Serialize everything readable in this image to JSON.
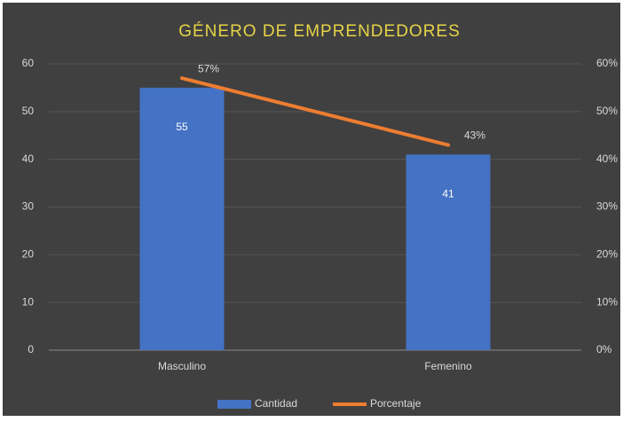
{
  "chart_data": {
    "type": "bar",
    "title": "GÉNERO DE EMPRENDEDORES",
    "categories": [
      "Masculino",
      "Femenino"
    ],
    "series": [
      {
        "name": "Cantidad",
        "type": "bar",
        "color": "#4472c4",
        "values": [
          55,
          41
        ]
      },
      {
        "name": "Porcentaje",
        "type": "line",
        "axis": "y2",
        "color": "#ed7d31",
        "values": [
          57,
          43
        ],
        "value_labels": [
          "57%",
          "43%"
        ]
      }
    ],
    "ylim": [
      0,
      60
    ],
    "yticks": [
      0,
      10,
      20,
      30,
      40,
      50,
      60
    ],
    "y2lim": [
      0,
      0.6
    ],
    "y2ticks": [
      {
        "value": 0,
        "label": "0%"
      },
      {
        "value": 0.1,
        "label": "10%"
      },
      {
        "value": 0.2,
        "label": "20%"
      },
      {
        "value": 0.3,
        "label": "30%"
      },
      {
        "value": 0.4,
        "label": "40%"
      },
      {
        "value": 0.5,
        "label": "50%"
      },
      {
        "value": 0.6,
        "label": "60%"
      }
    ],
    "grid": true,
    "legend": "bottom"
  }
}
